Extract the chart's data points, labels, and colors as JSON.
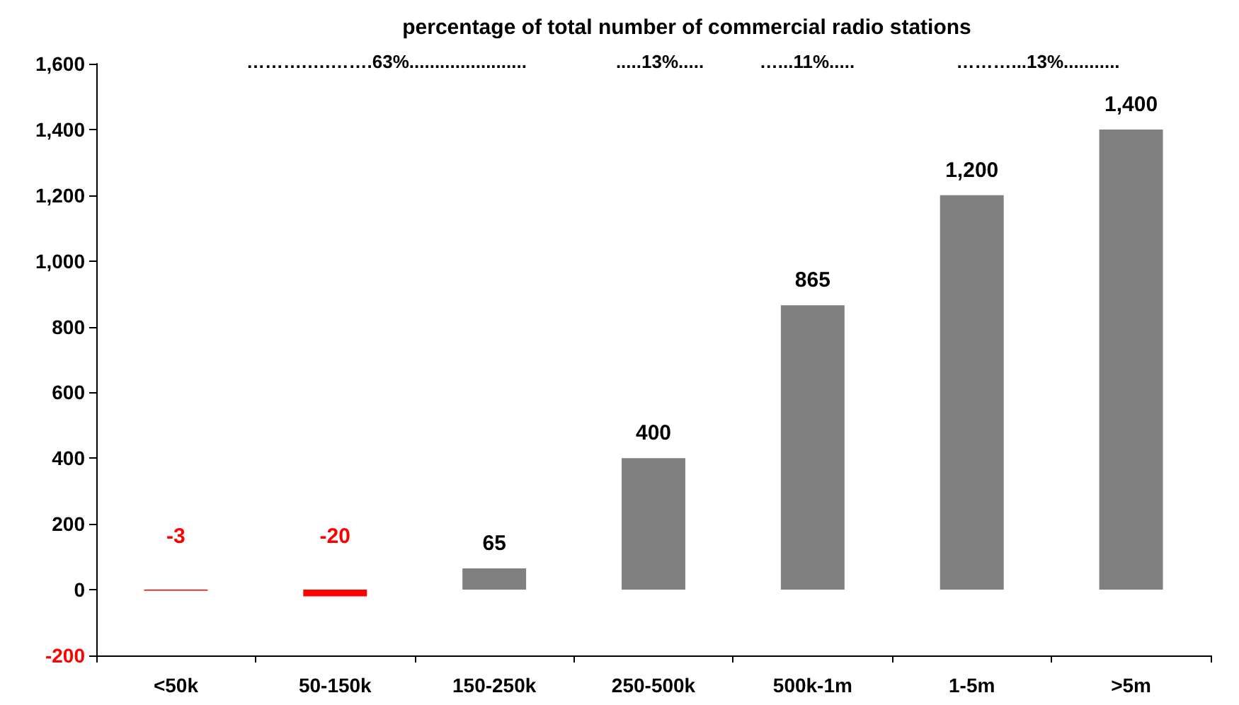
{
  "chart_data": {
    "type": "bar",
    "title": "percentage of total number of commercial radio stations",
    "annotations": [
      "……….….…….63%.......................",
      ".....13%.....",
      "…...11%.....",
      "………...13%..........."
    ],
    "categories": [
      "<50k",
      "50-150k",
      "150-250k",
      "250-500k",
      "500k-1m",
      "1-5m",
      ">5m"
    ],
    "values": [
      -3,
      -20,
      65,
      400,
      865,
      1200,
      1400
    ],
    "value_labels": [
      "-3",
      "-20",
      "65",
      "400",
      "865",
      "1,200",
      "1,400"
    ],
    "colors": [
      "#ff0000",
      "#ff0000",
      "#808080",
      "#808080",
      "#808080",
      "#808080",
      "#808080"
    ],
    "ylim": [
      -200,
      1600
    ],
    "yticks": [
      -200,
      0,
      200,
      400,
      600,
      800,
      {
        "value": 1000,
        "label": "1,000"
      },
      {
        "value": 1200,
        "label": "1,200"
      },
      {
        "value": 1400,
        "label": "1,400"
      },
      {
        "value": 1600,
        "label": "1,600"
      }
    ],
    "grid": false
  }
}
